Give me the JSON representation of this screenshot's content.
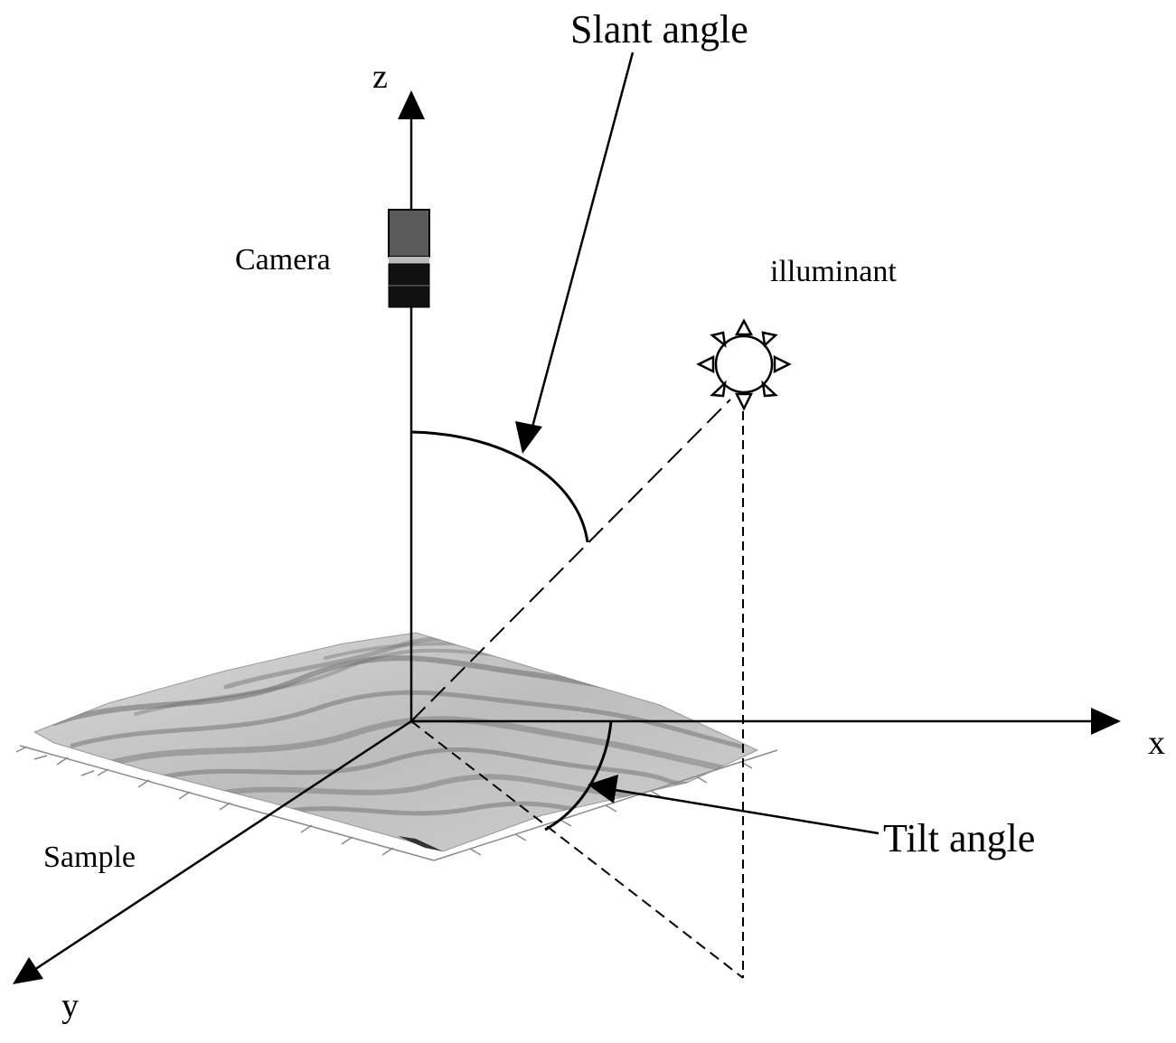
{
  "labels": {
    "axis_z": "z",
    "axis_x": "x",
    "axis_y": "y",
    "camera": "Camera",
    "illuminant": "illuminant",
    "slant_angle": "Slant angle",
    "tilt_angle": "Tilt angle",
    "sample": "Sample"
  },
  "colors": {
    "line": "#000000",
    "background": "#ffffff",
    "camera_body": "#5a5a5a",
    "camera_lens": "#111111",
    "sample_light": "#cfcfcf",
    "sample_dark": "#6e6e6e"
  },
  "icons": {
    "illuminant": "sun-icon",
    "camera": "camera-icon"
  }
}
